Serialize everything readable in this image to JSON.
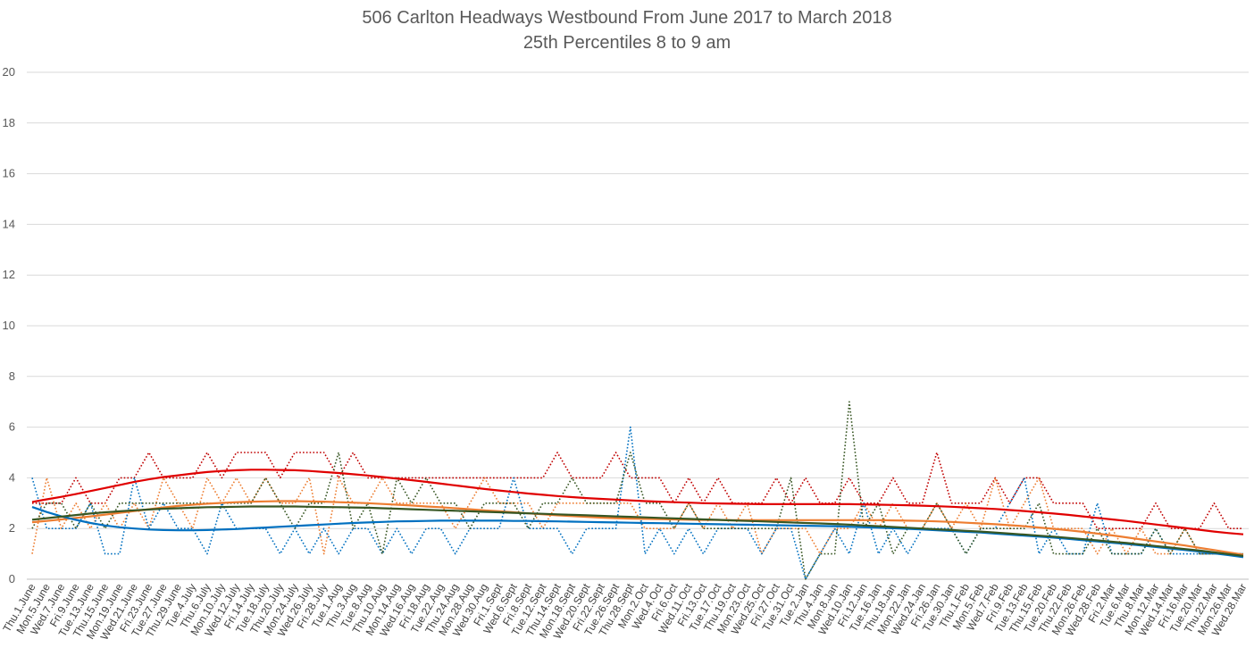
{
  "chart_data": {
    "type": "line",
    "title": "506 Carlton Headways Westbound From June 2017 to March 2018",
    "subtitle": "25th Percentiles 8 to 9 am",
    "xlabel": "",
    "ylabel": "",
    "ylim": [
      0,
      20
    ],
    "yticks": [
      0,
      2,
      4,
      6,
      8,
      10,
      12,
      14,
      16,
      18,
      20
    ],
    "grid": true,
    "legend": "none",
    "categories": [
      "Thu.1.June",
      "Mon.5.June",
      "Wed.7.June",
      "Fri.9.June",
      "Tue.13.June",
      "Thu.15.June",
      "Mon.19.June",
      "Wed.21.June",
      "Fri.23.June",
      "Tue.27.June",
      "Thu.29.June",
      "Tue.4.July",
      "Thu.6.July",
      "Mon.10.July",
      "Wed.12.July",
      "Fri.14.July",
      "Tue.18.July",
      "Thu.20.July",
      "Mon.24.July",
      "Wed.26.July",
      "Fri.28.July",
      "Tue.1.Aug",
      "Thu.3.Aug",
      "Tue.8.Aug",
      "Thu.10.Aug",
      "Mon.14.Aug",
      "Wed.16.Aug",
      "Fri.18.Aug",
      "Tue.22.Aug",
      "Thu.24.Aug",
      "Mon.28.Aug",
      "Wed.30.Aug",
      "Fri.1.Sept",
      "Wed.6.Sept",
      "Fri.8.Sept",
      "Tue.12.Sept",
      "Thu.14.Sept",
      "Mon.18.Sept",
      "Wed.20.Sept",
      "Fri.22.Sept",
      "Tue.26.Sept",
      "Thu.28.Sept",
      "Mon.2.Oct",
      "Wed.4.Oct",
      "Fri.6.Oct",
      "Wed.11.Oct",
      "Fri.13.Oct",
      "Tue.17.Oct",
      "Thu.19.Oct",
      "Mon.23.Oct",
      "Wed.25.Oct",
      "Fri.27.Oct",
      "Tue.31.Oct",
      "Tue.2.Jan",
      "Thu.4.Jan",
      "Mon.8.Jan",
      "Wed.10.Jan",
      "Fri.12.Jan",
      "Tue.16.Jan",
      "Thu.18.Jan",
      "Mon.22.Jan",
      "Wed.24.Jan",
      "Fri.26.Jan",
      "Tue.30.Jan",
      "Thu.1.Feb",
      "Mon.5.Feb",
      "Wed.7.Feb",
      "Fri.9.Feb",
      "Tue.13.Feb",
      "Thu.15.Feb",
      "Tue.20.Feb",
      "Thu.22.Feb",
      "Mon.26.Feb",
      "Wed.28.Feb",
      "Fri.2.Mar",
      "Tue.6.Mar",
      "Thu.8.Mar",
      "Mon.12.Mar",
      "Wed.14.Mar",
      "Fri.16.Mar",
      "Tue.20.Mar",
      "Thu.22.Mar",
      "Mon.26.Mar",
      "Wed.28.Mar"
    ],
    "series": [
      {
        "color": "#c00000",
        "style": "dotted",
        "values": [
          3,
          3,
          3,
          4,
          3,
          3,
          4,
          4,
          5,
          4,
          4,
          4,
          5,
          4,
          5,
          5,
          5,
          4,
          5,
          5,
          5,
          4,
          5,
          4,
          4,
          4,
          4,
          4,
          4,
          4,
          4,
          4,
          4,
          4,
          4,
          4,
          5,
          4,
          4,
          4,
          5,
          4,
          4,
          4,
          3,
          4,
          3,
          4,
          3,
          3,
          3,
          4,
          3,
          4,
          3,
          3,
          4,
          3,
          3,
          4,
          3,
          3,
          5,
          3,
          3,
          3,
          4,
          3,
          4,
          4,
          3,
          3,
          3,
          2,
          2,
          2,
          2,
          3,
          2,
          2,
          2,
          3,
          2,
          2
        ]
      },
      {
        "color": "#ed7d31",
        "style": "dotted",
        "values": [
          1,
          4,
          2,
          3,
          2,
          3,
          2,
          3,
          2,
          4,
          3,
          2,
          4,
          3,
          4,
          3,
          4,
          3,
          3,
          4,
          1,
          4,
          3,
          3,
          4,
          3,
          3,
          3,
          3,
          2,
          3,
          4,
          3,
          3,
          3,
          2,
          3,
          3,
          3,
          3,
          3,
          3,
          2,
          2,
          2,
          3,
          2,
          3,
          2,
          3,
          1,
          2,
          2,
          2,
          1,
          2,
          2,
          3,
          2,
          3,
          2,
          2,
          3,
          2,
          3,
          2,
          4,
          2,
          3,
          4,
          2,
          2,
          2,
          1,
          2,
          1,
          2,
          1,
          1,
          2,
          1,
          1,
          1,
          1
        ]
      },
      {
        "color": "#0070c0",
        "style": "dotted",
        "values": [
          4,
          2,
          2,
          2,
          3,
          1,
          1,
          4,
          2,
          3,
          2,
          2,
          1,
          3,
          2,
          2,
          2,
          1,
          2,
          1,
          2,
          1,
          2,
          2,
          1,
          2,
          1,
          2,
          2,
          1,
          2,
          2,
          2,
          4,
          2,
          2,
          2,
          1,
          2,
          2,
          2,
          6,
          1,
          2,
          1,
          2,
          1,
          2,
          2,
          2,
          1,
          2,
          2,
          0,
          1,
          2,
          1,
          3,
          1,
          2,
          1,
          2,
          2,
          2,
          1,
          2,
          2,
          3,
          4,
          1,
          2,
          1,
          1,
          3,
          1,
          1,
          1,
          2,
          1,
          1,
          1,
          1,
          1,
          1
        ]
      },
      {
        "color": "#375623",
        "style": "dotted",
        "values": [
          2,
          3,
          3,
          2,
          3,
          2,
          3,
          3,
          3,
          3,
          3,
          3,
          3,
          3,
          3,
          3,
          4,
          3,
          2,
          3,
          3,
          5,
          2,
          3,
          1,
          4,
          3,
          4,
          3,
          3,
          2,
          3,
          3,
          3,
          2,
          3,
          3,
          4,
          3,
          3,
          3,
          5,
          3,
          3,
          2,
          3,
          2,
          2,
          2,
          2,
          2,
          2,
          4,
          0,
          1,
          1,
          7,
          2,
          3,
          1,
          2,
          2,
          3,
          2,
          1,
          2,
          2,
          2,
          2,
          3,
          1,
          1,
          1,
          2,
          1,
          1,
          1,
          2,
          1,
          2,
          1,
          1,
          1,
          1
        ]
      },
      {
        "color": "#e00000",
        "style": "solid",
        "values": [
          3.05,
          3.15,
          3.25,
          3.36,
          3.48,
          3.6,
          3.72,
          3.84,
          3.94,
          4.03,
          4.1,
          4.17,
          4.23,
          4.27,
          4.3,
          4.32,
          4.32,
          4.31,
          4.3,
          4.27,
          4.23,
          4.19,
          4.14,
          4.09,
          4.03,
          3.97,
          3.91,
          3.84,
          3.77,
          3.7,
          3.63,
          3.56,
          3.5,
          3.44,
          3.38,
          3.33,
          3.28,
          3.24,
          3.2,
          3.17,
          3.14,
          3.11,
          3.08,
          3.06,
          3.04,
          3.02,
          3.0,
          2.99,
          2.98,
          2.97,
          2.96,
          2.96,
          2.96,
          2.96,
          2.96,
          2.96,
          2.96,
          2.95,
          2.94,
          2.93,
          2.92,
          2.9,
          2.88,
          2.86,
          2.83,
          2.8,
          2.77,
          2.73,
          2.69,
          2.64,
          2.59,
          2.54,
          2.48,
          2.42,
          2.36,
          2.3,
          2.23,
          2.16,
          2.09,
          2.02,
          1.95,
          1.88,
          1.82,
          1.77
        ]
      },
      {
        "color": "#ed7d31",
        "style": "solid",
        "values": [
          2.25,
          2.3,
          2.36,
          2.42,
          2.48,
          2.55,
          2.62,
          2.69,
          2.76,
          2.83,
          2.89,
          2.94,
          2.98,
          3.01,
          3.04,
          3.06,
          3.07,
          3.08,
          3.08,
          3.07,
          3.06,
          3.04,
          3.02,
          3.0,
          2.97,
          2.94,
          2.91,
          2.87,
          2.84,
          2.8,
          2.76,
          2.72,
          2.68,
          2.64,
          2.6,
          2.56,
          2.52,
          2.49,
          2.46,
          2.43,
          2.41,
          2.39,
          2.38,
          2.37,
          2.36,
          2.35,
          2.34,
          2.34,
          2.33,
          2.33,
          2.33,
          2.33,
          2.33,
          2.33,
          2.33,
          2.33,
          2.33,
          2.33,
          2.33,
          2.32,
          2.31,
          2.3,
          2.28,
          2.26,
          2.23,
          2.2,
          2.17,
          2.13,
          2.09,
          2.04,
          1.99,
          1.93,
          1.87,
          1.8,
          1.73,
          1.65,
          1.57,
          1.49,
          1.41,
          1.33,
          1.24,
          1.15,
          1.06,
          0.97
        ]
      },
      {
        "color": "#0070c0",
        "style": "solid",
        "values": [
          2.85,
          2.65,
          2.48,
          2.34,
          2.22,
          2.12,
          2.05,
          2.0,
          1.96,
          1.94,
          1.93,
          1.93,
          1.94,
          1.96,
          1.98,
          2.01,
          2.04,
          2.07,
          2.1,
          2.13,
          2.16,
          2.19,
          2.22,
          2.24,
          2.26,
          2.28,
          2.29,
          2.3,
          2.31,
          2.31,
          2.31,
          2.31,
          2.31,
          2.3,
          2.3,
          2.29,
          2.28,
          2.27,
          2.26,
          2.25,
          2.24,
          2.23,
          2.22,
          2.21,
          2.2,
          2.19,
          2.18,
          2.17,
          2.16,
          2.15,
          2.14,
          2.13,
          2.12,
          2.11,
          2.1,
          2.09,
          2.07,
          2.05,
          2.03,
          2.01,
          1.99,
          1.96,
          1.93,
          1.9,
          1.87,
          1.84,
          1.8,
          1.76,
          1.72,
          1.68,
          1.64,
          1.59,
          1.54,
          1.49,
          1.44,
          1.39,
          1.33,
          1.27,
          1.21,
          1.15,
          1.09,
          1.02,
          0.95,
          0.87
        ]
      },
      {
        "color": "#375623",
        "style": "solid",
        "values": [
          2.35,
          2.41,
          2.47,
          2.53,
          2.59,
          2.64,
          2.68,
          2.72,
          2.75,
          2.78,
          2.8,
          2.82,
          2.84,
          2.85,
          2.86,
          2.87,
          2.87,
          2.87,
          2.87,
          2.86,
          2.85,
          2.84,
          2.83,
          2.82,
          2.8,
          2.78,
          2.76,
          2.74,
          2.72,
          2.7,
          2.68,
          2.66,
          2.64,
          2.62,
          2.6,
          2.58,
          2.56,
          2.54,
          2.52,
          2.5,
          2.48,
          2.46,
          2.44,
          2.42,
          2.4,
          2.38,
          2.36,
          2.34,
          2.32,
          2.3,
          2.28,
          2.26,
          2.24,
          2.22,
          2.2,
          2.18,
          2.15,
          2.12,
          2.09,
          2.06,
          2.03,
          2.0,
          1.97,
          1.94,
          1.91,
          1.88,
          1.84,
          1.8,
          1.76,
          1.72,
          1.68,
          1.63,
          1.58,
          1.53,
          1.48,
          1.43,
          1.37,
          1.31,
          1.25,
          1.19,
          1.13,
          1.06,
          0.99,
          0.92
        ]
      }
    ]
  }
}
